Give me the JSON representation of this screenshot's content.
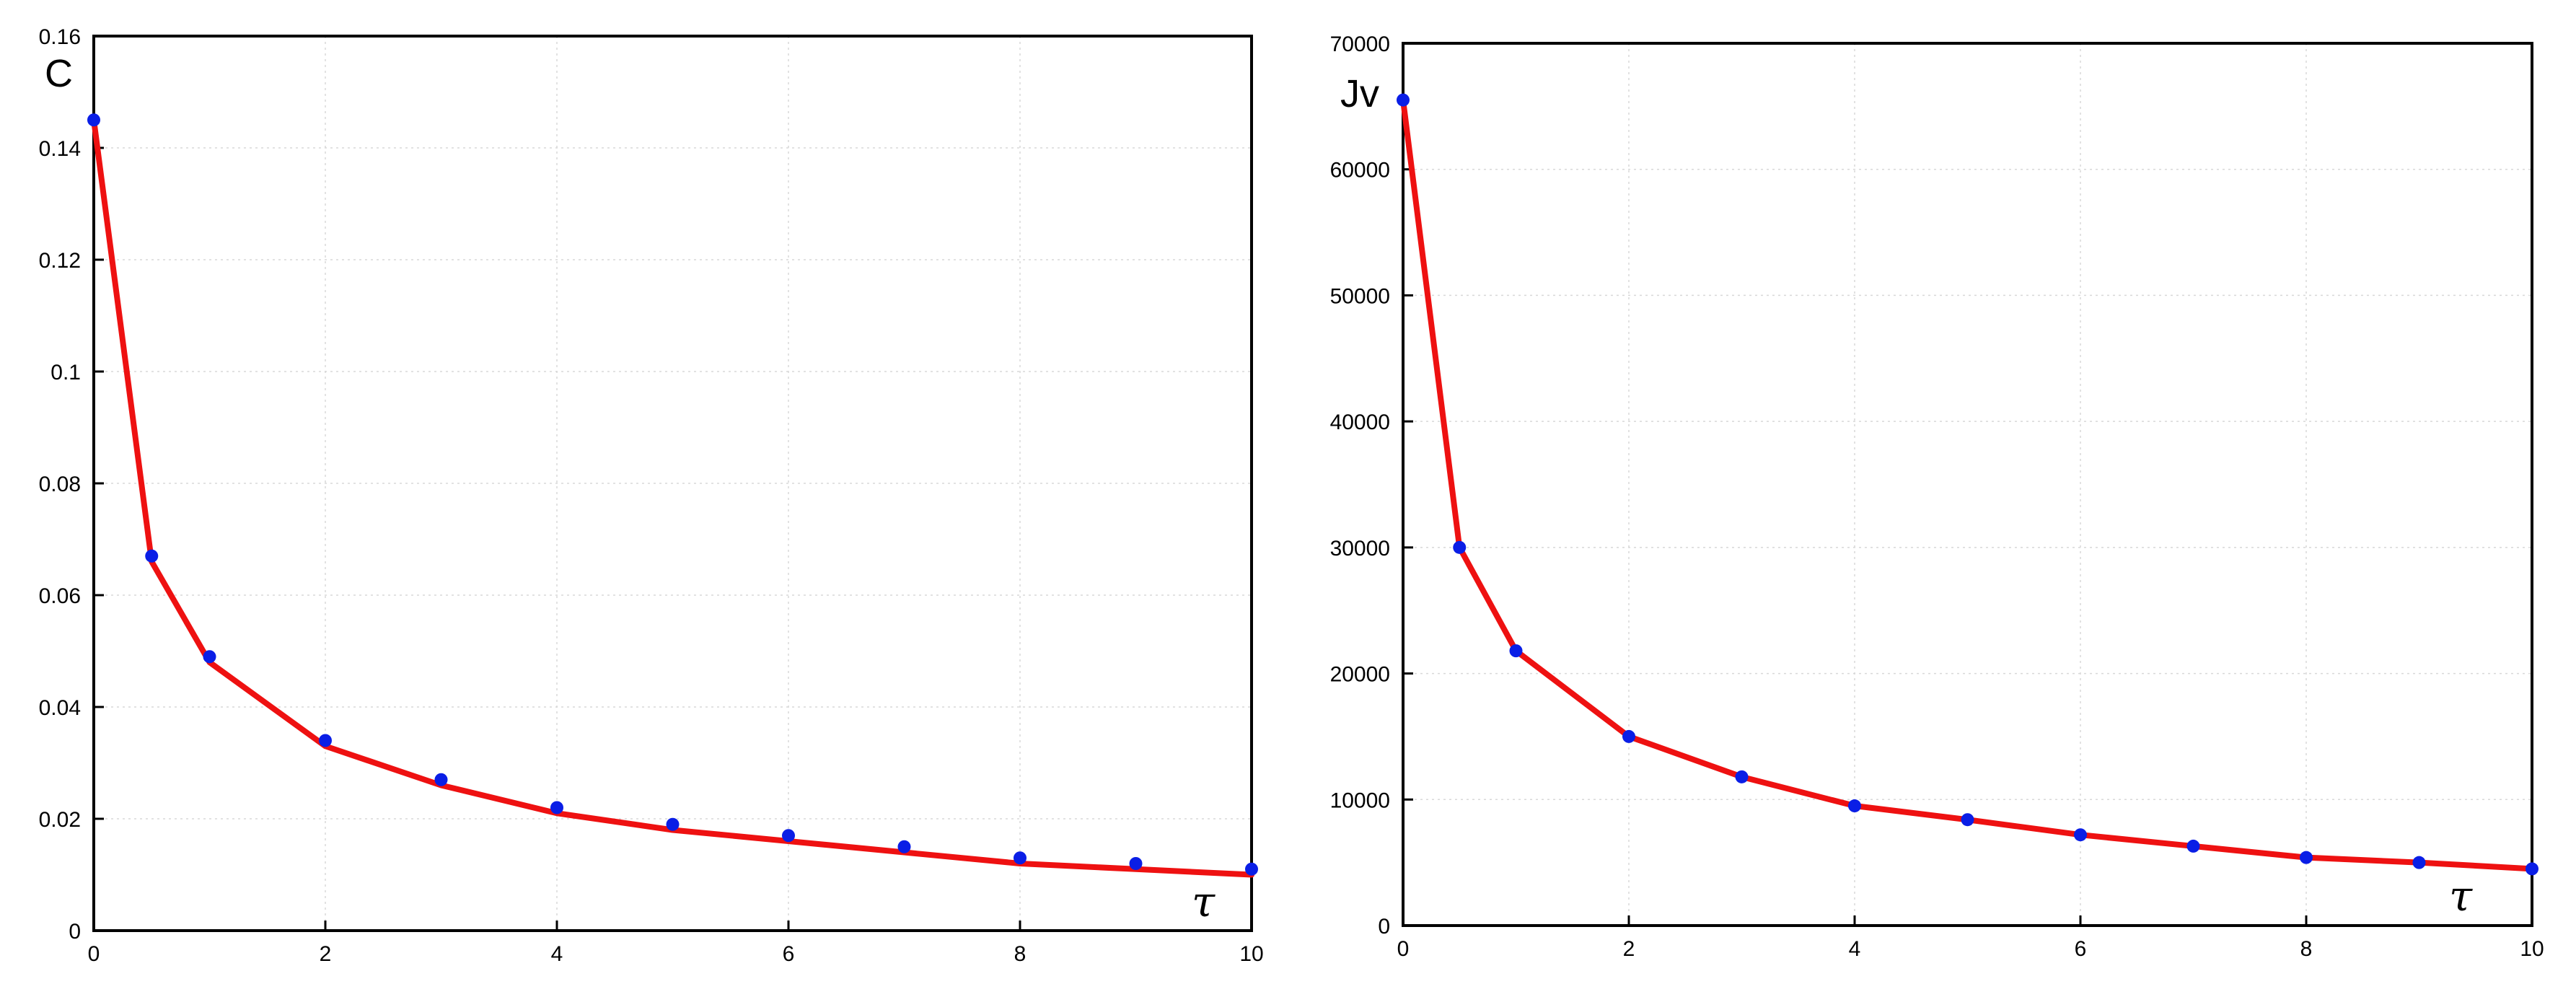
{
  "chart_data": [
    {
      "type": "line",
      "title": "",
      "xlabel": "τ",
      "ylabel": "C",
      "xlim": [
        0,
        10
      ],
      "ylim": [
        0,
        0.16
      ],
      "grid": true,
      "x_ticks": [
        0,
        2,
        4,
        6,
        8,
        10
      ],
      "x_tick_labels": [
        "0",
        "2",
        "4",
        "6",
        "8",
        "10"
      ],
      "y_ticks": [
        0,
        0.02,
        0.04,
        0.06,
        0.08,
        0.1,
        0.12,
        0.14,
        0.16
      ],
      "y_tick_labels": [
        "0",
        "0.02",
        "0.04",
        "0.06",
        "0.08",
        "0.1",
        "0.12",
        "0.14",
        "0.16"
      ],
      "series": [
        {
          "kind": "line",
          "color": "#ee1111",
          "x": [
            0,
            0.5,
            1,
            2,
            3,
            4,
            5,
            6,
            7,
            8,
            9,
            10
          ],
          "y": [
            0.145,
            0.066,
            0.048,
            0.033,
            0.026,
            0.021,
            0.018,
            0.016,
            0.014,
            0.012,
            0.011,
            0.01
          ]
        },
        {
          "kind": "scatter",
          "color": "#0a1ee6",
          "x": [
            0,
            0.5,
            1,
            2,
            3,
            4,
            5,
            6,
            7,
            8,
            9,
            10
          ],
          "y": [
            0.145,
            0.067,
            0.049,
            0.034,
            0.027,
            0.022,
            0.019,
            0.017,
            0.015,
            0.013,
            0.012,
            0.011
          ]
        }
      ]
    },
    {
      "type": "line",
      "title": "",
      "xlabel": "τ",
      "ylabel": "Jv",
      "xlim": [
        0,
        10
      ],
      "ylim": [
        0,
        70000
      ],
      "grid": true,
      "x_ticks": [
        0,
        2,
        4,
        6,
        8,
        10
      ],
      "x_tick_labels": [
        "0",
        "2",
        "4",
        "6",
        "8",
        "10"
      ],
      "y_ticks": [
        0,
        10000,
        20000,
        30000,
        40000,
        50000,
        60000,
        70000
      ],
      "y_tick_labels": [
        "0",
        "10000",
        "20000",
        "30000",
        "40000",
        "50000",
        "60000",
        "70000"
      ],
      "series": [
        {
          "kind": "line",
          "color": "#ee1111",
          "x": [
            0,
            0.5,
            1,
            2,
            3,
            4,
            5,
            6,
            7,
            8,
            9,
            10
          ],
          "y": [
            65500,
            30000,
            21800,
            15000,
            11800,
            9500,
            8400,
            7200,
            6300,
            5400,
            5000,
            4500
          ]
        },
        {
          "kind": "scatter",
          "color": "#0a1ee6",
          "x": [
            0,
            0.5,
            1,
            2,
            3,
            4,
            5,
            6,
            7,
            8,
            9,
            10
          ],
          "y": [
            65500,
            30000,
            21800,
            15000,
            11800,
            9500,
            8400,
            7200,
            6300,
            5400,
            5000,
            4500
          ]
        }
      ]
    }
  ]
}
